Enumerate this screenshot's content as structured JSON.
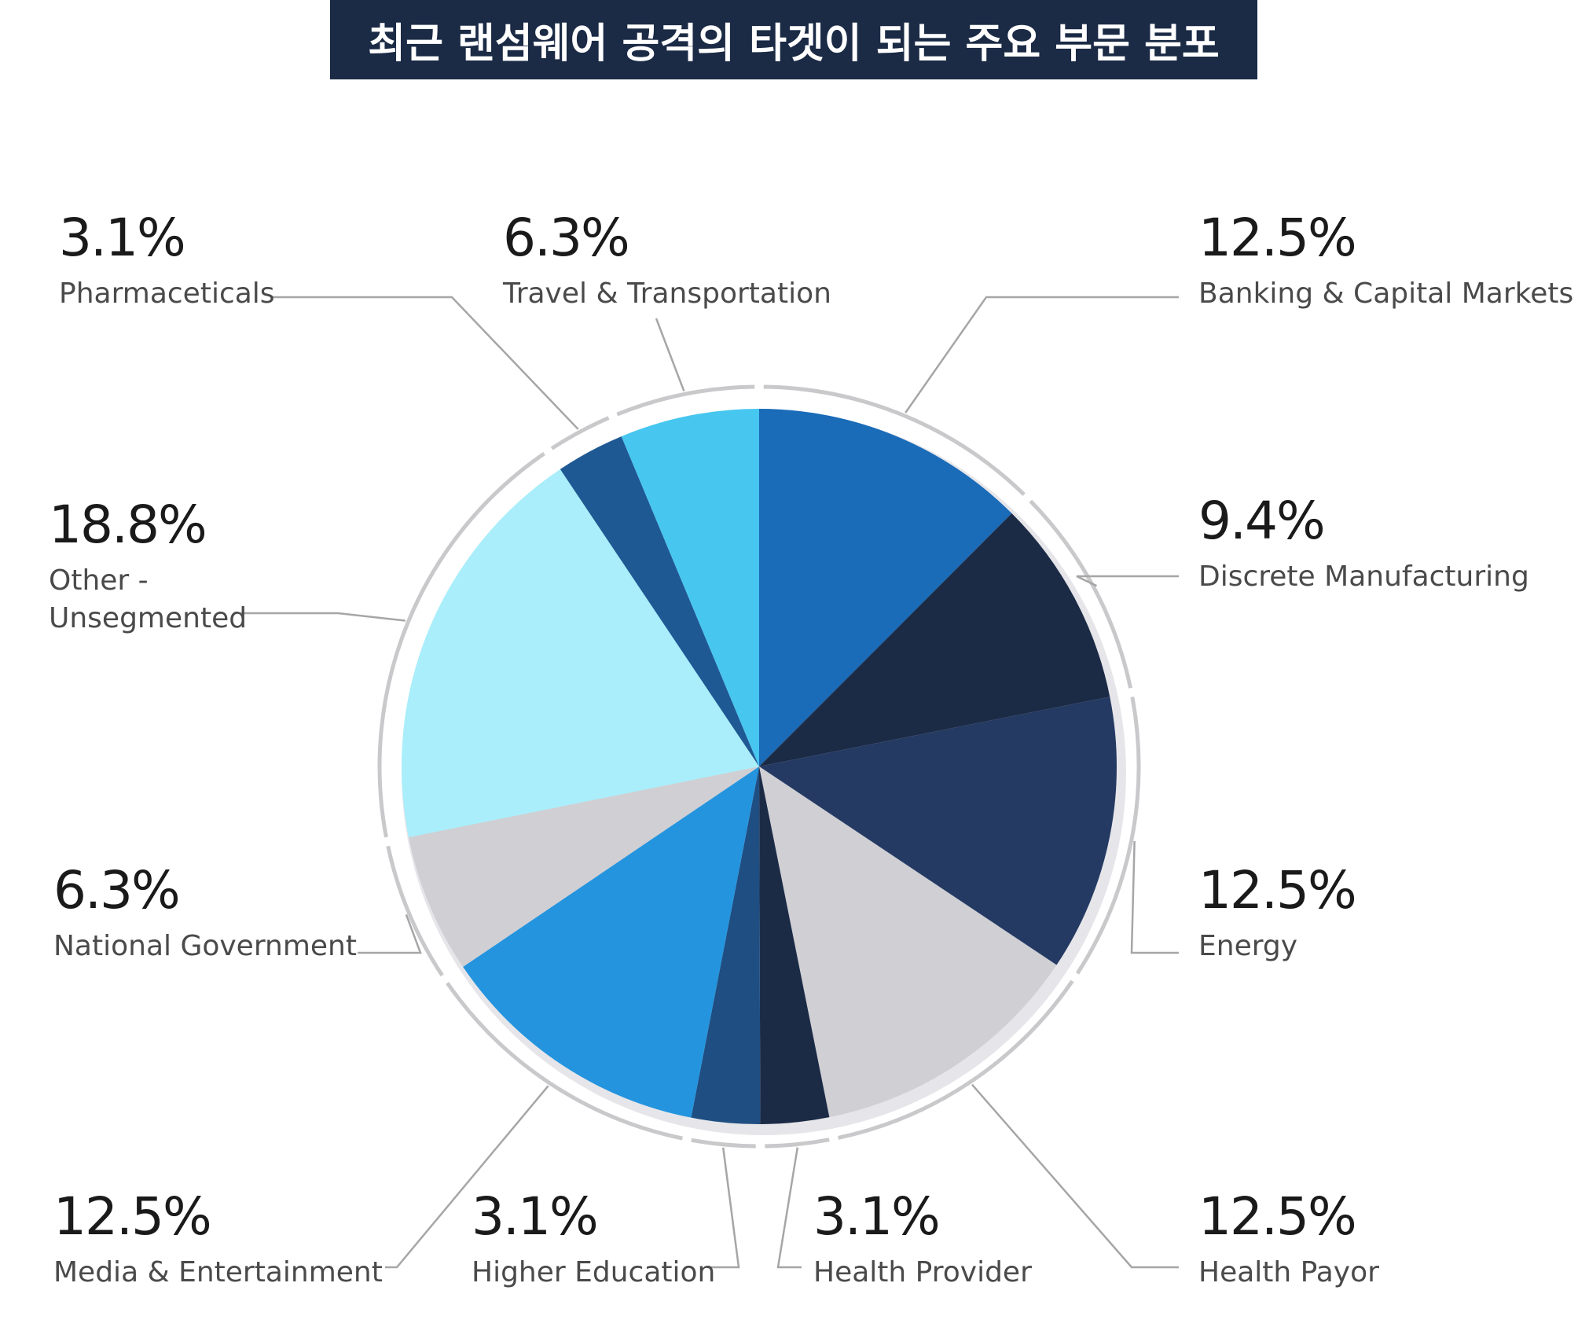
{
  "title": "최근 랜섬웨어 공격의 타겟이 되는 주요 부문 분포",
  "chart_data": {
    "type": "pie",
    "title": "최근 랜섬웨어 공격의 타겟이 되는 주요 부문 분포",
    "slices": [
      {
        "name": "Banking & Capital Markets",
        "value": 12.5,
        "label": "12.5%",
        "color": "#1a6bb8"
      },
      {
        "name": "Discrete Manufacturing",
        "value": 9.4,
        "label": "9.4%",
        "color": "#1c2b45"
      },
      {
        "name": "Energy",
        "value": 12.5,
        "label": "12.5%",
        "color": "#243a63"
      },
      {
        "name": "Health Payor",
        "value": 12.5,
        "label": "12.5%",
        "color": "#cfcfd4"
      },
      {
        "name": "Health Provider",
        "value": 3.1,
        "label": "3.1%",
        "color": "#1c2b45"
      },
      {
        "name": "Higher Education",
        "value": 3.1,
        "label": "3.1%",
        "color": "#1f4e82"
      },
      {
        "name": "Media & Entertainment",
        "value": 12.5,
        "label": "12.5%",
        "color": "#2494de"
      },
      {
        "name": "National Government",
        "value": 6.3,
        "label": "6.3%",
        "color": "#cfcfd4"
      },
      {
        "name": "Other - Unsegmented",
        "value": 18.8,
        "label": "18.8%",
        "color": "#a9eefa",
        "lines": [
          "Other -",
          "Unsegmented"
        ]
      },
      {
        "name": "Pharmaceticals",
        "value": 3.1,
        "label": "3.1%",
        "color": "#1f5994"
      },
      {
        "name": "Travel & Transportation",
        "value": 6.3,
        "label": "6.3%",
        "color": "#47c6f0"
      }
    ]
  }
}
